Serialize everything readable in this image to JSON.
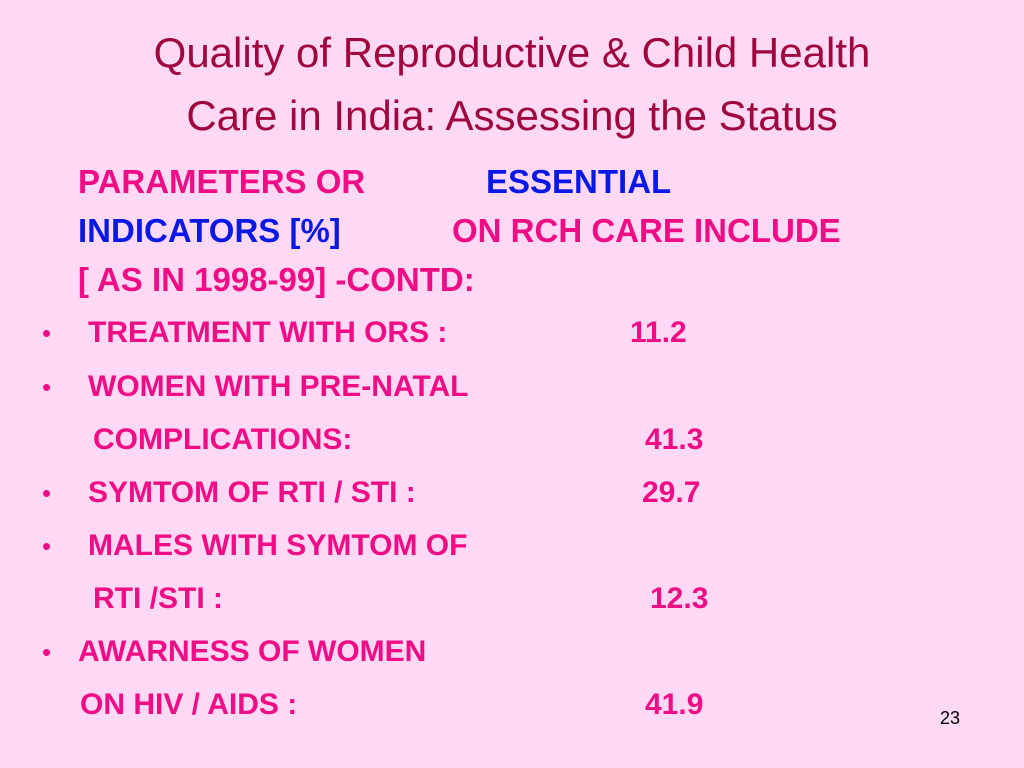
{
  "header": {
    "title_lines": [
      "Quality of Reproductive & Child Health",
      "Care in India: Assessing the Status"
    ]
  },
  "heading": {
    "segments": [
      "PARAMETERS OR",
      "ESSENTIAL",
      "INDICATORS [%]",
      "ON RCH CARE INCLUDE",
      "[ AS IN 1998-99] -CONTD:"
    ]
  },
  "items": [
    {
      "lines": [
        "TREATMENT WITH ORS :"
      ],
      "value": 11.2
    },
    {
      "lines": [
        "WOMEN WITH PRE-NATAL",
        "COMPLICATIONS:"
      ],
      "value": 41.3
    },
    {
      "lines": [
        "SYMTOM OF RTI / STI :"
      ],
      "value": 29.7
    },
    {
      "lines": [
        "MALES WITH SYMTOM OF",
        "RTI /STI :"
      ],
      "value": 12.3
    },
    {
      "lines": [
        "AWARNESS OF WOMEN",
        "ON HIV / AIDS :"
      ],
      "value": 41.9
    }
  ],
  "footer": {
    "page_number": 23
  }
}
